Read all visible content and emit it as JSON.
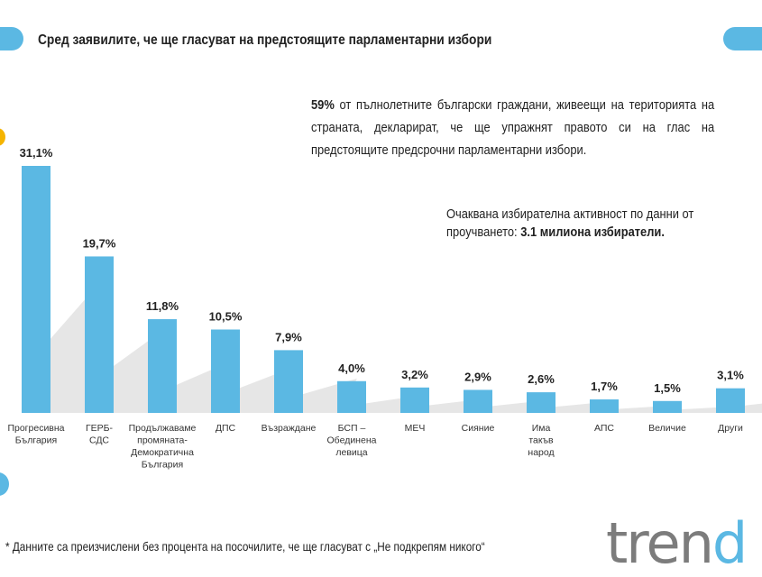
{
  "title": "Сред заявилите, че ще гласуват на предстоящите парламентарни избори",
  "note1": {
    "bold": "59%",
    "text": " от пълнолетните български граждани, живеещи на територията на страната, декларират, че ще упражнят правото си на глас на предстоящите предсрочни парламентарни избори."
  },
  "note2": {
    "text": "Очаквана избирателна активност по данни от проучването: ",
    "bold": "3.1 милиона избиратели."
  },
  "footnote": "* Данните са преизчислени без процента на посочилите, че ще гласуват с „Не подкрепям никого“",
  "logo": "trend",
  "colors": {
    "bar": "#5bb8e3",
    "accent": "#f5b400"
  },
  "chart_data": {
    "type": "bar",
    "categories": [
      [
        "Прогресивна",
        "България"
      ],
      [
        "ГЕРБ-",
        "СДС"
      ],
      [
        "Продължаваме",
        "промяната-",
        "Демократична",
        "България"
      ],
      [
        "ДПС"
      ],
      [
        "Възраждане"
      ],
      [
        "БСП –",
        "Обединена",
        "левица"
      ],
      [
        "МЕЧ"
      ],
      [
        "Сияние"
      ],
      [
        "Има",
        "такъв",
        "народ"
      ],
      [
        "АПС"
      ],
      [
        "Величие"
      ],
      [
        "Други"
      ]
    ],
    "values": [
      31.1,
      19.7,
      11.8,
      10.5,
      7.9,
      4.0,
      3.2,
      2.9,
      2.6,
      1.7,
      1.5,
      3.1
    ],
    "labels": [
      "31,1%",
      "19,7%",
      "11,8%",
      "10,5%",
      "7,9%",
      "4,0%",
      "3,2%",
      "2,9%",
      "2,6%",
      "1,7%",
      "1,5%",
      "3,1%"
    ],
    "ylim": [
      0,
      31.1
    ]
  }
}
